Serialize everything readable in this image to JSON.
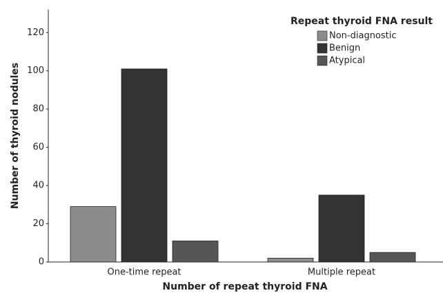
{
  "chart_data": {
    "type": "bar",
    "categories": [
      "One-time repeat",
      "Multiple repeat"
    ],
    "series": [
      {
        "name": "Non-diagnostic",
        "color": "#8c8c8c",
        "values": [
          29,
          2
        ]
      },
      {
        "name": "Benign",
        "color": "#333333",
        "values": [
          101,
          35
        ]
      },
      {
        "name": "Atypical",
        "color": "#565656",
        "values": [
          11,
          5
        ]
      }
    ],
    "legend_title": "Repeat thyroid FNA result",
    "legend": "upper right",
    "x_label": "Number of repeat thyroid FNA",
    "y_label": "Number of thyroid nodules",
    "ylim": [
      0,
      132
    ],
    "yticks": [
      0,
      20,
      40,
      60,
      80,
      100,
      120
    ],
    "grid": false
  }
}
